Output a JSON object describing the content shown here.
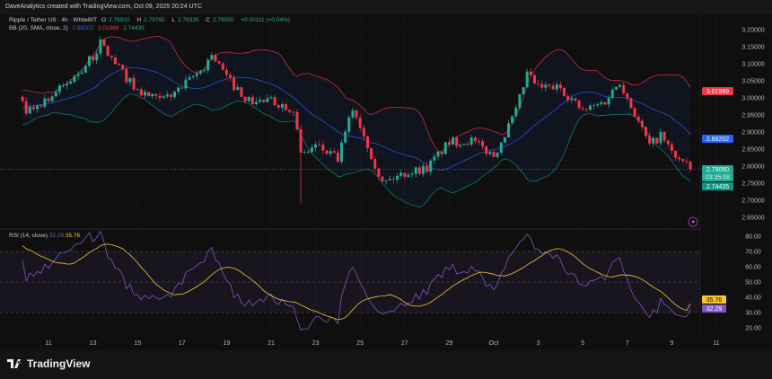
{
  "header": {
    "attribution": "DaveAnalytics created with TradingView.com, Oct 09, 2025 20:24 UTC"
  },
  "legend": {
    "symbol": "Ripple / Tether US · 4h · WhiteBIT",
    "o_label": "O",
    "o": "2.78910",
    "h_label": "H",
    "h": "2.79765",
    "l_label": "L",
    "l": "2.78335",
    "c_label": "C",
    "c": "2.79050",
    "change": "+0.00111 (+0.04%)",
    "bb_label": "BB (20, SMA, close, 2)",
    "bb_basis": "2.88202",
    "bb_upper": "3.01969",
    "bb_lower": "2.74435"
  },
  "rsi_legend": {
    "label": "RSI (14, close)",
    "rsi": "32.29",
    "rsi_ma": "35.76"
  },
  "price_labels": {
    "last": "2.79050",
    "countdown": "03:35:08",
    "upper": "3.01969",
    "basis": "2.88202",
    "lower": "2.74435"
  },
  "rsi_labels": {
    "ma": "35.76",
    "rsi": "32.29"
  },
  "footer": {
    "logo_text": "TradingView"
  },
  "colors": {
    "up": "#22ab94",
    "down": "#f23645",
    "bb_upper": "#f23645",
    "bb_basis": "#2962ff",
    "bb_lower": "#089981",
    "rsi": "#7e57c2",
    "rsi_ma": "#f7c530",
    "background": "#0f0f0f"
  },
  "chart_data": [
    {
      "type": "candlestick",
      "timeframe": "4h",
      "ylim": [
        2.63,
        3.22
      ],
      "yticks": [
        "3.20000",
        "3.15000",
        "3.10000",
        "3.05000",
        "3.00000",
        "2.95000",
        "2.90000",
        "2.85000",
        "2.80000",
        "2.75000",
        "2.70000",
        "2.65000"
      ],
      "xticks": [
        "11",
        "13",
        "15",
        "17",
        "19",
        "21",
        "23",
        "25",
        "27",
        "29",
        "Oct",
        "3",
        "5",
        "7",
        "9",
        "11"
      ],
      "grid": true,
      "approx_price_path": [
        [
          "2025-09-09 20:00",
          3.0
        ],
        [
          "2025-09-10 00:00",
          2.96
        ],
        [
          "2025-09-11 00:00",
          3.0
        ],
        [
          "2025-09-12 00:00",
          3.05
        ],
        [
          "2025-09-13 00:00",
          3.12
        ],
        [
          "2025-09-13 08:00",
          3.16
        ],
        [
          "2025-09-14 00:00",
          3.1
        ],
        [
          "2025-09-15 00:00",
          3.02
        ],
        [
          "2025-09-16 00:00",
          2.99
        ],
        [
          "2025-09-17 00:00",
          3.03
        ],
        [
          "2025-09-18 00:00",
          3.09
        ],
        [
          "2025-09-18 08:00",
          3.13
        ],
        [
          "2025-09-19 00:00",
          3.06
        ],
        [
          "2025-09-20 00:00",
          2.99
        ],
        [
          "2025-09-21 00:00",
          2.99
        ],
        [
          "2025-09-22 00:00",
          2.97
        ],
        [
          "2025-09-22 08:00",
          2.83
        ],
        [
          "2025-09-23 00:00",
          2.86
        ],
        [
          "2025-09-24 00:00",
          2.82
        ],
        [
          "2025-09-24 16:00",
          2.97
        ],
        [
          "2025-09-25 00:00",
          2.92
        ],
        [
          "2025-09-26 00:00",
          2.75
        ],
        [
          "2025-09-27 00:00",
          2.78
        ],
        [
          "2025-09-28 00:00",
          2.795
        ],
        [
          "2025-09-29 00:00",
          2.87
        ],
        [
          "2025-09-30 00:00",
          2.875
        ],
        [
          "2025-10-01 00:00",
          2.83
        ],
        [
          "2025-10-02 00:00",
          2.96
        ],
        [
          "2025-10-02 12:00",
          3.07
        ],
        [
          "2025-10-03 00:00",
          3.03
        ],
        [
          "2025-10-04 00:00",
          3.03
        ],
        [
          "2025-10-05 00:00",
          2.96
        ],
        [
          "2025-10-06 00:00",
          2.99
        ],
        [
          "2025-10-06 16:00",
          3.05
        ],
        [
          "2025-10-07 00:00",
          3.0
        ],
        [
          "2025-10-08 00:00",
          2.86
        ],
        [
          "2025-10-08 12:00",
          2.89
        ],
        [
          "2025-10-09 00:00",
          2.84
        ],
        [
          "2025-10-09 20:00",
          2.79
        ]
      ],
      "notable_low": {
        "date": "2025-09-22 08:00",
        "price": 2.69
      },
      "last": {
        "open": 2.7891,
        "high": 2.79765,
        "low": 2.78335,
        "close": 2.7905
      },
      "indicator": {
        "name": "BB (20, SMA, close, 2)",
        "basis": 2.88202,
        "upper": 3.01969,
        "lower": 2.74435
      }
    },
    {
      "type": "line",
      "title": "RSI (14, close)",
      "ylim": [
        15,
        83
      ],
      "yticks": [
        "80.00",
        "70.00",
        "60.00",
        "50.00",
        "40.00",
        "30.00",
        "20.00"
      ],
      "bands": [
        30,
        50,
        70
      ],
      "last": {
        "rsi": 32.29,
        "rsi_ma": 35.76
      }
    }
  ]
}
